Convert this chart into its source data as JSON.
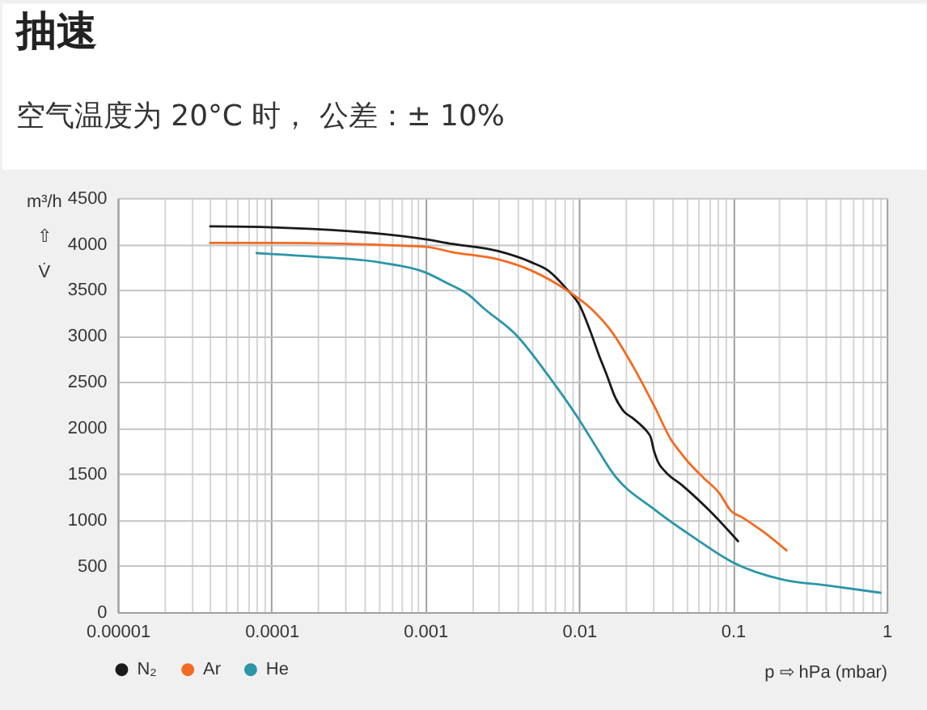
{
  "chart_data": {
    "type": "line",
    "title": "抽速",
    "subtitle": "空气温度为 20°C 时， 公差：± 10%",
    "xlabel": "p ⇨ hPa (mbar)",
    "ylabel": "m³/h\n⇧\nV̇",
    "log": "x",
    "xlim": [
      1e-05,
      1
    ],
    "xticks": [
      {
        "value": 1e-05,
        "label": "0.00001"
      },
      {
        "value": 2e-05,
        "label": null
      },
      {
        "value": 3e-05,
        "label": null
      },
      {
        "value": 4e-05,
        "label": null
      },
      {
        "value": 5e-05,
        "label": null
      },
      {
        "value": 6e-05,
        "label": null
      },
      {
        "value": 7e-05,
        "label": null
      },
      {
        "value": 8e-05,
        "label": null
      },
      {
        "value": 9e-05,
        "label": null
      },
      0.0001,
      {
        "value": 0.0002,
        "label": null
      },
      {
        "value": 0.0003,
        "label": null
      },
      {
        "value": 0.0004,
        "label": null
      },
      {
        "value": 0.0005,
        "label": null
      },
      {
        "value": 0.0006,
        "label": null
      },
      {
        "value": 0.0007,
        "label": null
      },
      {
        "value": 0.0008,
        "label": null
      },
      {
        "value": 0.0009,
        "label": null
      },
      0.001,
      {
        "value": 0.002,
        "label": null
      },
      {
        "value": 0.003,
        "label": null
      },
      {
        "value": 0.004,
        "label": null
      },
      {
        "value": 0.005,
        "label": null
      },
      {
        "value": 0.006,
        "label": null
      },
      {
        "value": 0.007,
        "label": null
      },
      {
        "value": 0.008,
        "label": null
      },
      {
        "value": 0.009,
        "label": null
      },
      0.01,
      {
        "value": 0.02,
        "label": null
      },
      {
        "value": 0.03,
        "label": null
      },
      {
        "value": 0.04,
        "label": null
      },
      {
        "value": 0.05,
        "label": null
      },
      {
        "value": 0.06,
        "label": null
      },
      {
        "value": 0.07,
        "label": null
      },
      {
        "value": 0.08,
        "label": null
      },
      {
        "value": 0.09,
        "label": null
      },
      0.1,
      {
        "value": 0.2,
        "label": null
      },
      {
        "value": 0.3,
        "label": null
      },
      {
        "value": 0.4,
        "label": null
      },
      {
        "value": 0.5,
        "label": null
      },
      {
        "value": 0.6,
        "label": null
      },
      {
        "value": 0.7,
        "label": null
      },
      {
        "value": 0.8,
        "label": null
      },
      {
        "value": 0.9,
        "label": null
      },
      1
    ],
    "ylim": [
      0,
      4500
    ],
    "yticks": [
      0,
      500,
      1000,
      1500,
      2000,
      2500,
      3000,
      3500,
      4000,
      4500
    ],
    "grid": true,
    "legend": "bottom left",
    "line_style": "solid",
    "series": [
      {
        "name": "N₂",
        "color": "#1a1a1a",
        "x": [
          4e-05,
          0.0001,
          0.001,
          0.0015,
          0.003,
          0.0049,
          0.0063,
          0.0083,
          0.0101,
          0.0119,
          0.0134,
          0.0151,
          0.0171,
          0.0193,
          0.0226,
          0.0245,
          0.0277,
          0.0292,
          0.0307,
          0.0324,
          0.0366,
          0.0466,
          0.0697,
          0.108
        ],
        "values": [
          4190,
          4180,
          4050,
          4000,
          3920,
          3800,
          3710,
          3510,
          3330,
          3040,
          2800,
          2580,
          2340,
          2190,
          2100,
          2050,
          1960,
          1900,
          1750,
          1640,
          1520,
          1380,
          1110,
          770
        ]
      },
      {
        "name": "Ar",
        "color": "#f26b22",
        "x": [
          4e-05,
          0.0001,
          0.001,
          0.0015,
          0.003,
          0.0049,
          0.0086,
          0.0119,
          0.0164,
          0.0226,
          0.0312,
          0.0397,
          0.0448,
          0.0506,
          0.0643,
          0.0818,
          0.096,
          0.1175,
          0.1555,
          0.223
        ],
        "values": [
          4010,
          4010,
          3970,
          3910,
          3830,
          3710,
          3480,
          3300,
          3040,
          2660,
          2220,
          1870,
          1750,
          1640,
          1460,
          1290,
          1110,
          1020,
          880,
          670
        ]
      },
      {
        "name": "He",
        "color": "#2b96a8",
        "x": [
          8e-05,
          0.0001,
          0.0002,
          0.0005,
          0.001,
          0.0014,
          0.0019,
          0.0024,
          0.0039,
          0.0063,
          0.0101,
          0.0134,
          0.0164,
          0.0312,
          0.0547,
          0.1,
          0.215,
          0.408,
          0.91
        ],
        "values": [
          3900,
          3890,
          3860,
          3800,
          3690,
          3570,
          3450,
          3300,
          3010,
          2570,
          2080,
          1750,
          1520,
          1110,
          820,
          540,
          350,
          290,
          210
        ]
      }
    ]
  }
}
